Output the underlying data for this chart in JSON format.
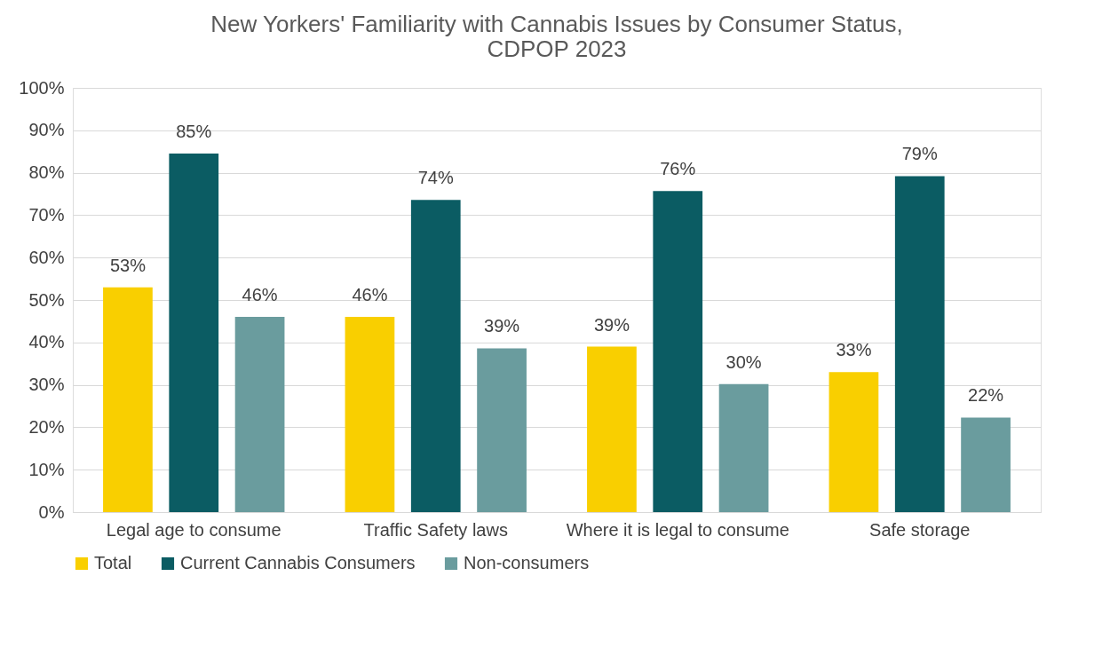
{
  "chart_data": {
    "type": "bar",
    "title": "New Yorkers' Familiarity with Cannabis Issues by Consumer Status, CDPOP 2023",
    "categories": [
      "Legal age to consume",
      "Traffic Safety laws",
      "Where it is legal to consume",
      "Safe storage"
    ],
    "series": [
      {
        "name": "Total",
        "color": "#f9cf00",
        "values": [
          53,
          46,
          39,
          33
        ],
        "value_labels": [
          "53%",
          "46%",
          "39%",
          "33%"
        ]
      },
      {
        "name": "Current Cannabis Consumers",
        "color": "#0b5c63",
        "values": [
          84.5,
          73.6,
          75.7,
          79.2
        ],
        "value_labels": [
          "85%",
          "74%",
          "76%",
          "79%"
        ]
      },
      {
        "name": "Non-consumers",
        "color": "#6a9c9e",
        "values": [
          46,
          38.6,
          30.2,
          22.3
        ],
        "value_labels": [
          "46%",
          "39%",
          "30%",
          "22%"
        ]
      }
    ],
    "ylim": [
      0,
      100
    ],
    "yticks": [
      {
        "value": 0,
        "label": "0%"
      },
      {
        "value": 10,
        "label": "10%"
      },
      {
        "value": 20,
        "label": "20%"
      },
      {
        "value": 30,
        "label": "30%"
      },
      {
        "value": 40,
        "label": "40%"
      },
      {
        "value": 50,
        "label": "50%"
      },
      {
        "value": 60,
        "label": "60%"
      },
      {
        "value": 70,
        "label": "70%"
      },
      {
        "value": 80,
        "label": "80%"
      },
      {
        "value": 90,
        "label": "90%"
      },
      {
        "value": 100,
        "label": "100%"
      }
    ],
    "grid": "y",
    "legend": "bottom"
  }
}
